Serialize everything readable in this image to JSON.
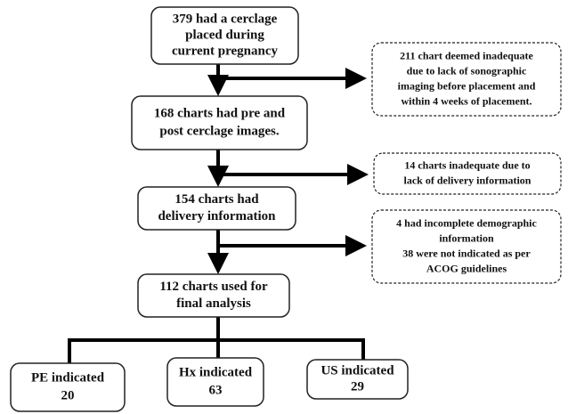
{
  "nodes": [
    {
      "lines": [
        "379 had a cerclage",
        "placed during",
        "current pregnancy"
      ]
    },
    {
      "lines": [
        "211 chart deemed inadequate",
        "due to lack of sonographic",
        "imaging before placement and",
        "within 4 weeks of placement."
      ]
    },
    {
      "lines": [
        "168 charts had pre and",
        "post cerclage images."
      ]
    },
    {
      "lines": [
        "14 charts inadequate due to",
        "lack of delivery information"
      ]
    },
    {
      "lines": [
        "154  charts had",
        "delivery information"
      ]
    },
    {
      "lines": [
        "4 had incomplete demographic",
        "information",
        "38 were not indicated as per",
        "ACOG guidelines"
      ]
    },
    {
      "lines": [
        "112 charts used for",
        "final analysis"
      ]
    },
    {
      "lines": [
        "PE indicated",
        "20"
      ]
    },
    {
      "lines": [
        "Hx indicated",
        "63"
      ]
    },
    {
      "lines": [
        "US indicated",
        "29"
      ]
    }
  ]
}
